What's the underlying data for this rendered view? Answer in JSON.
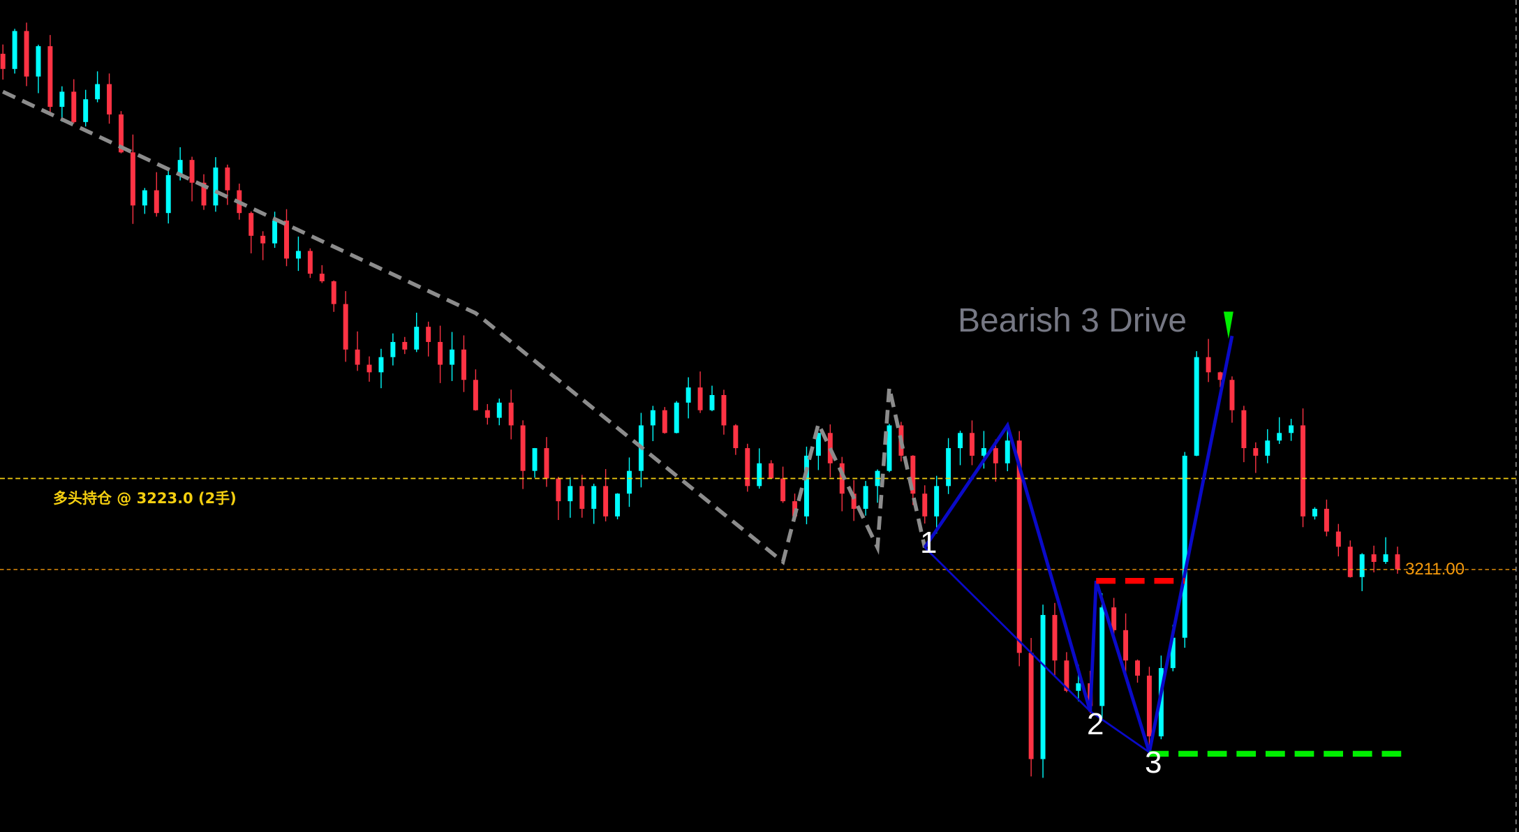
{
  "chart_data": {
    "type": "candlestick",
    "title": "Bearish 3 Drive",
    "colors": {
      "up": "#00ffff",
      "down": "#ff3344",
      "background": "#000000",
      "zigzag": "#8c8c8c",
      "pattern": "#0a0ac8",
      "stop": "#ff0000",
      "target": "#00ee00",
      "position_line": "#f5cf10",
      "price_line": "#f59a0c"
    },
    "closes": [
      3277,
      3282,
      3276,
      3280,
      3272,
      3274,
      3270,
      3273,
      3275,
      3271,
      3266,
      3259,
      3261,
      3258,
      3263,
      3265,
      3262,
      3259,
      3264,
      3261,
      3258,
      3255,
      3254,
      3257,
      3252,
      3253,
      3250,
      3249,
      3246,
      3240,
      3238,
      3237,
      3239,
      3241,
      3240,
      3243,
      3241,
      3238,
      3240,
      3236,
      3232,
      3231,
      3233,
      3230,
      3224,
      3227,
      3223,
      3220,
      3222,
      3219,
      3222,
      3218,
      3221,
      3224,
      3230,
      3232,
      3229,
      3233,
      3235,
      3232,
      3234,
      3230,
      3227,
      3222,
      3225,
      3223,
      3220,
      3218,
      3226,
      3229,
      3225,
      3221,
      3219,
      3222,
      3224,
      3230,
      3226,
      3221,
      3218,
      3222,
      3227,
      3229,
      3226,
      3227,
      3225,
      3228,
      3200,
      3186,
      3205,
      3199,
      3195,
      3196,
      3193,
      3206,
      3203,
      3199,
      3197,
      3189,
      3198,
      3202,
      3226,
      3239,
      3237,
      3236,
      3232,
      3227,
      3226,
      3228,
      3229,
      3230,
      3218,
      3219,
      3216,
      3214,
      3210,
      3213,
      3212,
      3213,
      3211
    ],
    "y_range": [
      3181,
      3284
    ],
    "zigzag": [
      [
        0,
        3274
      ],
      [
        40,
        3244.8
      ],
      [
        66,
        3212
      ],
      [
        69,
        3230.2
      ],
      [
        74,
        3213.9
      ],
      [
        75,
        3235
      ],
      [
        78,
        3213.9
      ]
    ],
    "pattern": [
      [
        78,
        3213.9
      ],
      [
        85,
        3230
      ],
      [
        92,
        3192.3
      ],
      [
        92.5,
        3209.5
      ],
      [
        97,
        3186.9
      ],
      [
        104,
        3241.8
      ]
    ],
    "pattern_points": [
      {
        "label": "1",
        "bar": 78,
        "price": 3213.9
      },
      {
        "label": "2",
        "bar": 92,
        "price": 3192.3
      },
      {
        "label": "3",
        "bar": 97,
        "price": 3186.9
      }
    ],
    "stop_line": {
      "price": 3209.5,
      "from": 92.5,
      "to": 100
    },
    "target_line": {
      "price": 3186.7,
      "from": 97,
      "to": 119
    },
    "signal_arrow": {
      "bar": 103.7,
      "price": 3245,
      "direction": "down"
    },
    "position": {
      "label": "多头持仓 @ 3223.0 (2手)",
      "price": 3223.0
    },
    "current_price": {
      "label": "3211.00",
      "price": 3211.0
    }
  }
}
